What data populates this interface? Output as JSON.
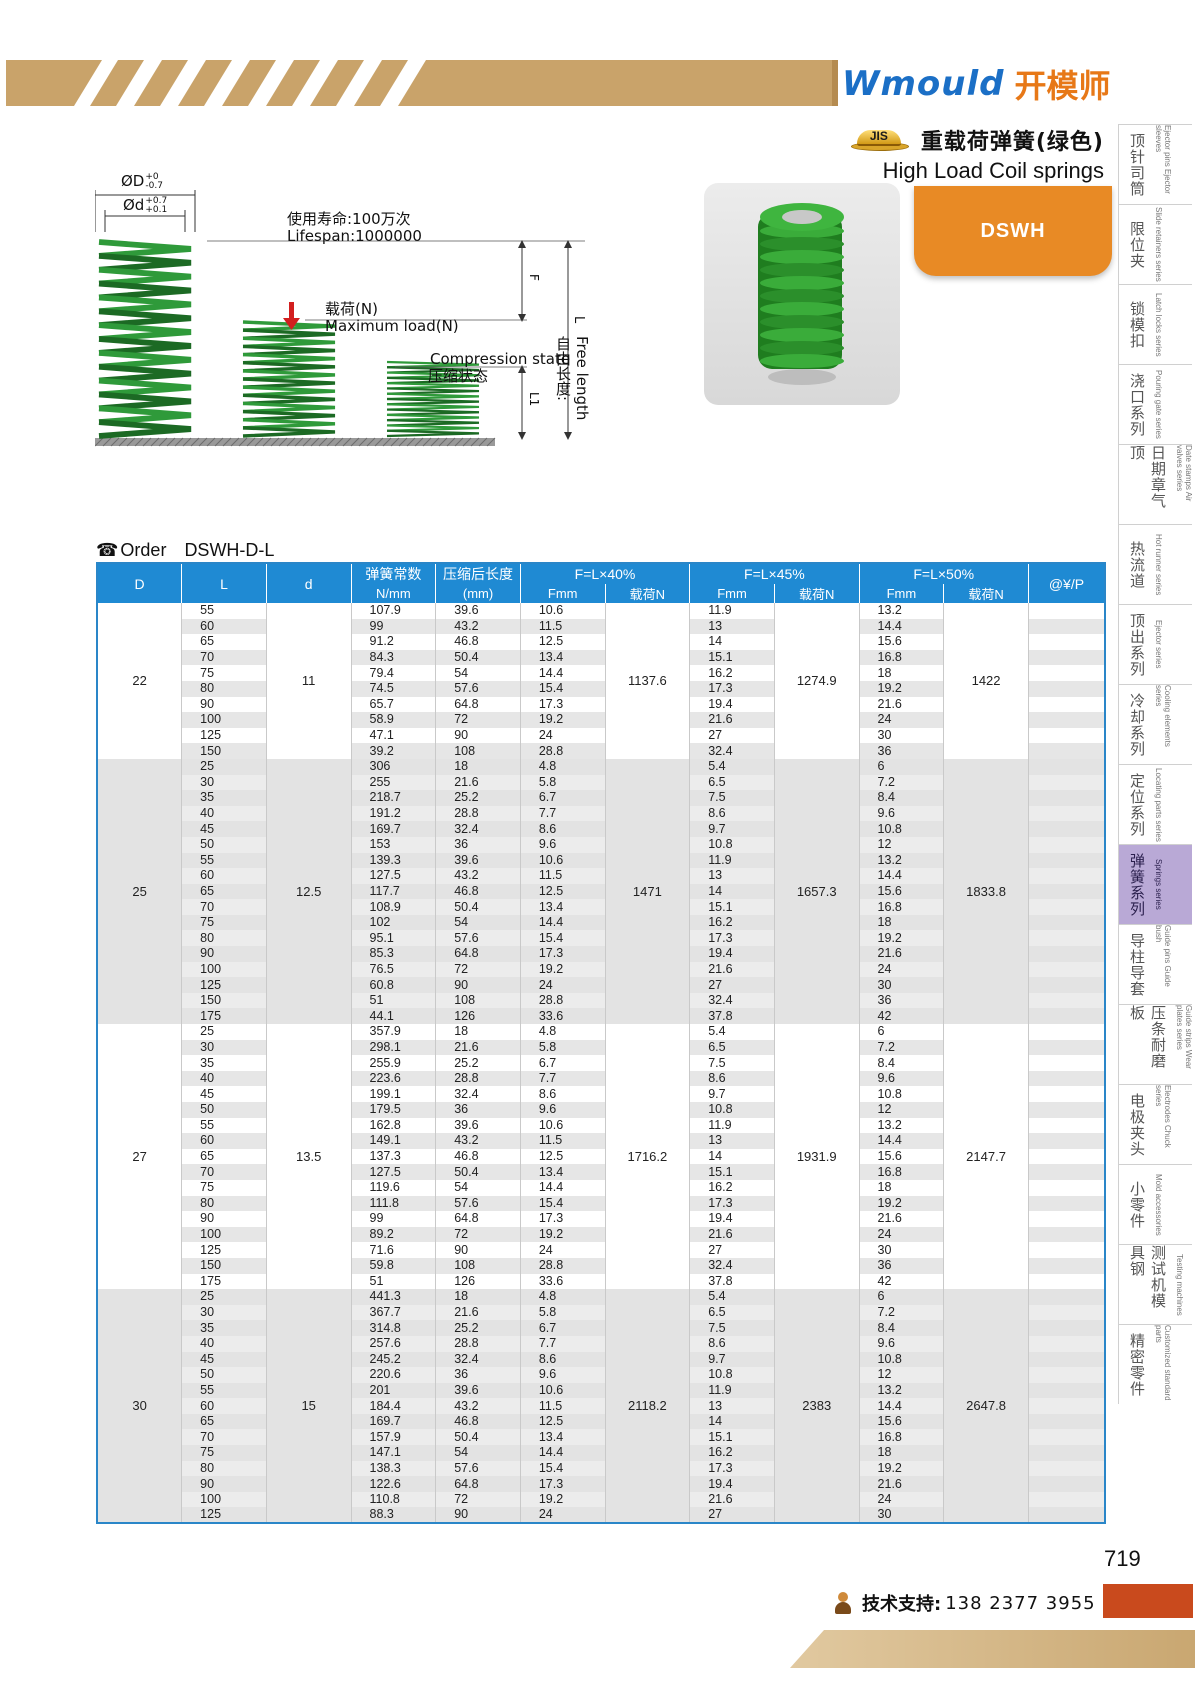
{
  "brand": {
    "name": "Wmould",
    "name_cn": "开模师"
  },
  "product": {
    "badge": "JIS",
    "title_cn": "重载荷弹簧(绿色)",
    "title_en": "High Load Coil springs",
    "code_tag": "DSWH"
  },
  "diagram": {
    "outer_dia_label": "ØD",
    "outer_dia_tol_upper": "+0",
    "outer_dia_tol_lower": "-0.7",
    "inner_dia_label": "Ød",
    "inner_dia_tol_upper": "+0.7",
    "inner_dia_tol_lower": "+0.1",
    "lifespan_cn": "使用寿命:100万次",
    "lifespan_en": "Lifespan:1000000",
    "load_cn": "载荷(N)",
    "load_en": "Maximum load(N)",
    "compression_en": "Compression state",
    "compression_cn": "压缩状态",
    "F": "F",
    "L": "L",
    "L1": "L1",
    "free_length_cn": "自由长度:",
    "free_length_en": "Free length"
  },
  "order": {
    "label": "Order",
    "code": "DSWH-D-L"
  },
  "table": {
    "headers": {
      "D": "D",
      "L": "L",
      "d": "d",
      "rate": "弹簧常数",
      "rate_unit": "N/mm",
      "compressed": "压缩后长度",
      "compressed_unit": "(mm)",
      "g40": "F=L×40%",
      "g45": "F=L×45%",
      "g50": "F=L×50%",
      "fmm": "Fmm",
      "load": "载荷N",
      "price": "@¥/P"
    },
    "groups": [
      {
        "D": "22",
        "d": "11",
        "load40": "1137.6",
        "load45": "1274.9",
        "load50": "1422",
        "rows": [
          [
            "55",
            "107.9",
            "39.6",
            "10.6",
            "11.9",
            "13.2"
          ],
          [
            "60",
            "99",
            "43.2",
            "11.5",
            "13",
            "14.4"
          ],
          [
            "65",
            "91.2",
            "46.8",
            "12.5",
            "14",
            "15.6"
          ],
          [
            "70",
            "84.3",
            "50.4",
            "13.4",
            "15.1",
            "16.8"
          ],
          [
            "75",
            "79.4",
            "54",
            "14.4",
            "16.2",
            "18"
          ],
          [
            "80",
            "74.5",
            "57.6",
            "15.4",
            "17.3",
            "19.2"
          ],
          [
            "90",
            "65.7",
            "64.8",
            "17.3",
            "19.4",
            "21.6"
          ],
          [
            "100",
            "58.9",
            "72",
            "19.2",
            "21.6",
            "24"
          ],
          [
            "125",
            "47.1",
            "90",
            "24",
            "27",
            "30"
          ],
          [
            "150",
            "39.2",
            "108",
            "28.8",
            "32.4",
            "36"
          ]
        ]
      },
      {
        "D": "25",
        "d": "12.5",
        "load40": "1471",
        "load45": "1657.3",
        "load50": "1833.8",
        "rows": [
          [
            "25",
            "306",
            "18",
            "4.8",
            "5.4",
            "6"
          ],
          [
            "30",
            "255",
            "21.6",
            "5.8",
            "6.5",
            "7.2"
          ],
          [
            "35",
            "218.7",
            "25.2",
            "6.7",
            "7.5",
            "8.4"
          ],
          [
            "40",
            "191.2",
            "28.8",
            "7.7",
            "8.6",
            "9.6"
          ],
          [
            "45",
            "169.7",
            "32.4",
            "8.6",
            "9.7",
            "10.8"
          ],
          [
            "50",
            "153",
            "36",
            "9.6",
            "10.8",
            "12"
          ],
          [
            "55",
            "139.3",
            "39.6",
            "10.6",
            "11.9",
            "13.2"
          ],
          [
            "60",
            "127.5",
            "43.2",
            "11.5",
            "13",
            "14.4"
          ],
          [
            "65",
            "117.7",
            "46.8",
            "12.5",
            "14",
            "15.6"
          ],
          [
            "70",
            "108.9",
            "50.4",
            "13.4",
            "15.1",
            "16.8"
          ],
          [
            "75",
            "102",
            "54",
            "14.4",
            "16.2",
            "18"
          ],
          [
            "80",
            "95.1",
            "57.6",
            "15.4",
            "17.3",
            "19.2"
          ],
          [
            "90",
            "85.3",
            "64.8",
            "17.3",
            "19.4",
            "21.6"
          ],
          [
            "100",
            "76.5",
            "72",
            "19.2",
            "21.6",
            "24"
          ],
          [
            "125",
            "60.8",
            "90",
            "24",
            "27",
            "30"
          ],
          [
            "150",
            "51",
            "108",
            "28.8",
            "32.4",
            "36"
          ],
          [
            "175",
            "44.1",
            "126",
            "33.6",
            "37.8",
            "42"
          ]
        ]
      },
      {
        "D": "27",
        "d": "13.5",
        "load40": "1716.2",
        "load45": "1931.9",
        "load50": "2147.7",
        "rows": [
          [
            "25",
            "357.9",
            "18",
            "4.8",
            "5.4",
            "6"
          ],
          [
            "30",
            "298.1",
            "21.6",
            "5.8",
            "6.5",
            "7.2"
          ],
          [
            "35",
            "255.9",
            "25.2",
            "6.7",
            "7.5",
            "8.4"
          ],
          [
            "40",
            "223.6",
            "28.8",
            "7.7",
            "8.6",
            "9.6"
          ],
          [
            "45",
            "199.1",
            "32.4",
            "8.6",
            "9.7",
            "10.8"
          ],
          [
            "50",
            "179.5",
            "36",
            "9.6",
            "10.8",
            "12"
          ],
          [
            "55",
            "162.8",
            "39.6",
            "10.6",
            "11.9",
            "13.2"
          ],
          [
            "60",
            "149.1",
            "43.2",
            "11.5",
            "13",
            "14.4"
          ],
          [
            "65",
            "137.3",
            "46.8",
            "12.5",
            "14",
            "15.6"
          ],
          [
            "70",
            "127.5",
            "50.4",
            "13.4",
            "15.1",
            "16.8"
          ],
          [
            "75",
            "119.6",
            "54",
            "14.4",
            "16.2",
            "18"
          ],
          [
            "80",
            "111.8",
            "57.6",
            "15.4",
            "17.3",
            "19.2"
          ],
          [
            "90",
            "99",
            "64.8",
            "17.3",
            "19.4",
            "21.6"
          ],
          [
            "100",
            "89.2",
            "72",
            "19.2",
            "21.6",
            "24"
          ],
          [
            "125",
            "71.6",
            "90",
            "24",
            "27",
            "30"
          ],
          [
            "150",
            "59.8",
            "108",
            "28.8",
            "32.4",
            "36"
          ],
          [
            "175",
            "51",
            "126",
            "33.6",
            "37.8",
            "42"
          ]
        ]
      },
      {
        "D": "30",
        "d": "15",
        "load40": "2118.2",
        "load45": "2383",
        "load50": "2647.8",
        "rows": [
          [
            "25",
            "441.3",
            "18",
            "4.8",
            "5.4",
            "6"
          ],
          [
            "30",
            "367.7",
            "21.6",
            "5.8",
            "6.5",
            "7.2"
          ],
          [
            "35",
            "314.8",
            "25.2",
            "6.7",
            "7.5",
            "8.4"
          ],
          [
            "40",
            "257.6",
            "28.8",
            "7.7",
            "8.6",
            "9.6"
          ],
          [
            "45",
            "245.2",
            "32.4",
            "8.6",
            "9.7",
            "10.8"
          ],
          [
            "50",
            "220.6",
            "36",
            "9.6",
            "10.8",
            "12"
          ],
          [
            "55",
            "201",
            "39.6",
            "10.6",
            "11.9",
            "13.2"
          ],
          [
            "60",
            "184.4",
            "43.2",
            "11.5",
            "13",
            "14.4"
          ],
          [
            "65",
            "169.7",
            "46.8",
            "12.5",
            "14",
            "15.6"
          ],
          [
            "70",
            "157.9",
            "50.4",
            "13.4",
            "15.1",
            "16.8"
          ],
          [
            "75",
            "147.1",
            "54",
            "14.4",
            "16.2",
            "18"
          ],
          [
            "80",
            "138.3",
            "57.6",
            "15.4",
            "17.3",
            "19.2"
          ],
          [
            "90",
            "122.6",
            "64.8",
            "17.3",
            "19.4",
            "21.6"
          ],
          [
            "100",
            "110.8",
            "72",
            "19.2",
            "21.6",
            "24"
          ],
          [
            "125",
            "88.3",
            "90",
            "24",
            "27",
            "30"
          ]
        ]
      }
    ]
  },
  "sidebar": [
    {
      "cn": "顶针司筒",
      "en": "Ejector pins Ejector sleeves",
      "active": false
    },
    {
      "cn": "限位夹",
      "en": "Slide retainers series",
      "active": false
    },
    {
      "cn": "锁模扣",
      "en": "Latch locks series",
      "active": false
    },
    {
      "cn": "浇口系列",
      "en": "Pouring gate series",
      "active": false
    },
    {
      "cn": "日期章气顶",
      "en": "Date stamps Air valves series",
      "active": false
    },
    {
      "cn": "热流道",
      "en": "Hot runner series",
      "active": false
    },
    {
      "cn": "顶出系列",
      "en": "Ejector series",
      "active": false
    },
    {
      "cn": "冷却系列",
      "en": "Cooling elements series",
      "active": false
    },
    {
      "cn": "定位系列",
      "en": "Locating parts series",
      "active": false
    },
    {
      "cn": "弹簧系列",
      "en": "Springs series",
      "active": true
    },
    {
      "cn": "导柱导套",
      "en": "Guide pins Guide bush",
      "active": false
    },
    {
      "cn": "压条耐磨板",
      "en": "Guide strips Wear plates series",
      "active": false
    },
    {
      "cn": "电极夹头",
      "en": "Electrodes Chuck series",
      "active": false
    },
    {
      "cn": "小零件",
      "en": "Mold accessories",
      "active": false
    },
    {
      "cn": "测试机模具钢",
      "en": "Testing machines",
      "active": false
    },
    {
      "cn": "精密零件",
      "en": "Customized standard parts",
      "active": false
    }
  ],
  "footer": {
    "page_number": "719",
    "support_label": "技术支持:",
    "support_phone": "138 2377 3955"
  },
  "colors": {
    "table_header": "#1f8ad3",
    "brand_blue": "#1b6fc6",
    "brand_orange": "#e77817",
    "tag_orange": "#e88a25",
    "spring_green": "#2f9a2f",
    "sidebar_active": "#b9a9d6"
  }
}
